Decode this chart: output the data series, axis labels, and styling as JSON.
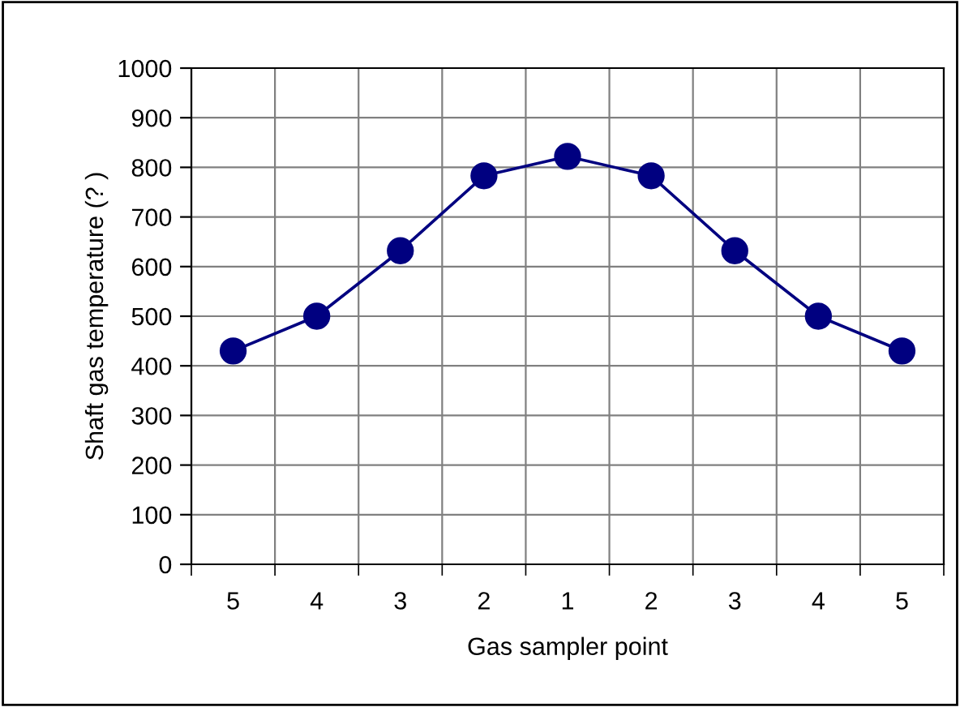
{
  "chart_data": {
    "type": "line",
    "xlabel": "Gas sampler point",
    "ylabel": "Shaft gas temperature (? )",
    "categories": [
      "5",
      "4",
      "3",
      "2",
      "1",
      "2",
      "3",
      "4",
      "5"
    ],
    "series": [
      {
        "color": "#000080",
        "values": [
          430,
          500,
          632,
          783,
          822,
          783,
          632,
          500,
          430
        ]
      }
    ],
    "ylim": [
      0,
      1000
    ],
    "yticks": [
      0,
      100,
      200,
      300,
      400,
      500,
      600,
      700,
      800,
      900,
      1000
    ],
    "grid": true,
    "marker": "circle",
    "line_style": "solid",
    "legend": false
  }
}
